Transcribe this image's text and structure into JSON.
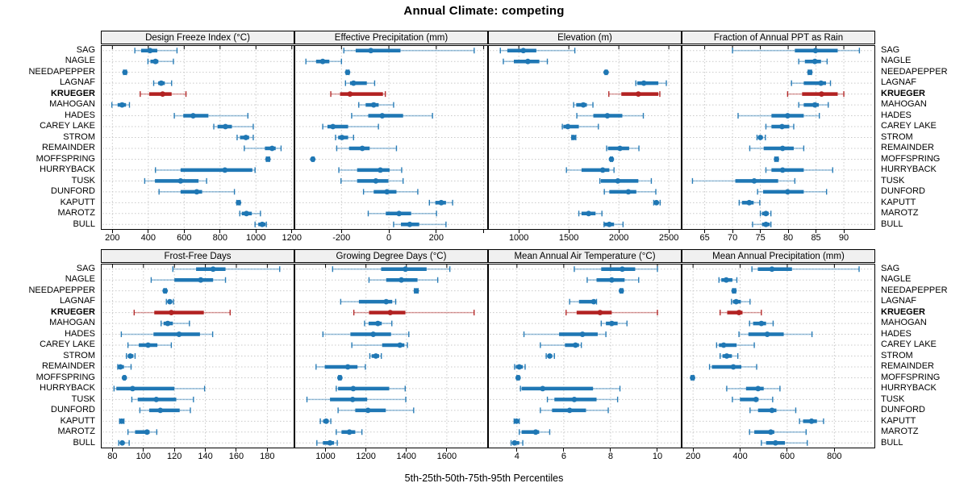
{
  "title": "Annual Climate: competing",
  "caption": "5th-25th-50th-75th-95th Percentiles",
  "highlight_site": "KRUEGER",
  "colors": {
    "series_blue": "#1F77B4",
    "highlight_red": "#B22222",
    "grid": "#C9C9C9",
    "header_bg": "#F0F0F0",
    "border": "#000000"
  },
  "chart_data": {
    "type": "dotplot-percentile-whiskers",
    "note": "each site row shows [5th, 25th, 50th, 75th, 95th] percentiles; thin line 5th-95th with end caps, thick bar 25th-75th, dot at median",
    "sites": [
      "SAG",
      "NAGLE",
      "NEEDAPEPPER",
      "LAGNAF",
      "KRUEGER",
      "MAHOGAN",
      "HADES",
      "CAREY LAKE",
      "STROM",
      "REMAINDER",
      "MOFFSPRING",
      "HURRYBACK",
      "TUSK",
      "DUNFORD",
      "KAPUTT",
      "MAROTZ",
      "BULL"
    ],
    "panels": [
      {
        "title": "Design Freeze Index (°C)",
        "xlim": [
          140,
          1210
        ],
        "ticks": [
          200,
          400,
          600,
          800,
          1000,
          1200
        ],
        "tick_labels": [
          "200",
          "400",
          "600",
          "800",
          "1000",
          "1200"
        ],
        "values": [
          [
            325,
            360,
            410,
            450,
            560
          ],
          [
            398,
            412,
            440,
            456,
            540
          ],
          [
            262,
            266,
            270,
            274,
            278
          ],
          [
            430,
            455,
            472,
            492,
            530
          ],
          [
            355,
            405,
            480,
            530,
            610
          ],
          [
            197,
            229,
            254,
            276,
            295
          ],
          [
            545,
            595,
            650,
            735,
            955
          ],
          [
            765,
            786,
            830,
            866,
            985
          ],
          [
            895,
            911,
            944,
            962,
            985
          ],
          [
            935,
            1050,
            1090,
            1110,
            1140
          ],
          [
            1058,
            1063,
            1067,
            1071,
            1076
          ],
          [
            440,
            580,
            827,
            980,
            995
          ],
          [
            380,
            437,
            580,
            680,
            725
          ],
          [
            460,
            580,
            670,
            700,
            880
          ],
          [
            893,
            899,
            903,
            907,
            912
          ],
          [
            910,
            921,
            947,
            977,
            1025
          ],
          [
            995,
            1013,
            1035,
            1053,
            1058
          ]
        ]
      },
      {
        "title": "Effective Precipitation (mm)",
        "xlim": [
          -395,
          415
        ],
        "ticks": [
          -200,
          0,
          200,
          400
        ],
        "tick_labels": [
          "-200",
          "0",
          "200",
          ""
        ],
        "values": [
          [
            -190,
            -140,
            -76,
            49,
            360
          ],
          [
            -350,
            -307,
            -279,
            -251,
            -200
          ],
          [
            -180,
            -177,
            -174,
            -171,
            -168
          ],
          [
            -183,
            -164,
            -149,
            -93,
            -60
          ],
          [
            -245,
            -206,
            -164,
            -25,
            -15
          ],
          [
            -127,
            -98,
            -64,
            -43,
            20
          ],
          [
            -157,
            -87,
            -28,
            60,
            184
          ],
          [
            -279,
            -259,
            -236,
            -172,
            -44
          ],
          [
            -225,
            -214,
            -198,
            -172,
            -149
          ],
          [
            -220,
            -168,
            -112,
            -81,
            32
          ],
          [
            -324,
            -322,
            -321,
            -319,
            -316
          ],
          [
            -211,
            -134,
            -36,
            3,
            54
          ],
          [
            -202,
            -134,
            -55,
            -2,
            60
          ],
          [
            -107,
            -64,
            -8,
            32,
            122
          ],
          [
            171,
            196,
            221,
            241,
            269
          ],
          [
            -87,
            -13,
            43,
            94,
            201
          ],
          [
            20,
            51,
            88,
            128,
            241
          ]
        ]
      },
      {
        "title": "Elevation (m)",
        "xlim": [
          700,
          2620
        ],
        "ticks": [
          1000,
          1500,
          2000,
          2500
        ],
        "tick_labels": [
          "1000",
          "1500",
          "2000",
          "2500"
        ],
        "values": [
          [
            815,
            885,
            1045,
            1175,
            1560
          ],
          [
            845,
            950,
            1090,
            1205,
            1285
          ],
          [
            1863,
            1868,
            1873,
            1878,
            1883
          ],
          [
            2170,
            2185,
            2250,
            2395,
            2475
          ],
          [
            1900,
            2025,
            2195,
            2395,
            2410
          ],
          [
            1548,
            1574,
            1645,
            1680,
            1741
          ],
          [
            1580,
            1745,
            1885,
            2035,
            2245
          ],
          [
            1435,
            1445,
            1490,
            1600,
            1795
          ],
          [
            1530,
            1541,
            1548,
            1556,
            1570
          ],
          [
            1878,
            1891,
            2011,
            2103,
            2201
          ],
          [
            1916,
            1921,
            1926,
            1931,
            1937
          ],
          [
            1476,
            1627,
            1839,
            1905,
            1952
          ],
          [
            1810,
            1820,
            1990,
            2195,
            2325
          ],
          [
            1855,
            1905,
            2095,
            2175,
            2370
          ],
          [
            2349,
            2363,
            2376,
            2390,
            2413
          ],
          [
            1600,
            1627,
            1698,
            1767,
            1831
          ],
          [
            1852,
            1857,
            1905,
            1952,
            2042
          ]
        ]
      },
      {
        "title": "Fraction of Annual PPT as Rain",
        "xlim": [
          61,
          95.5
        ],
        "ticks": [
          65,
          70,
          75,
          80,
          85,
          90
        ],
        "tick_labels": [
          "65",
          "70",
          "75",
          "80",
          "85",
          "90"
        ],
        "values": [
          [
            70,
            81.2,
            84.9,
            88.9,
            92.8
          ],
          [
            81.9,
            83.0,
            84.8,
            85.9,
            87.0
          ],
          [
            83.6,
            83.75,
            83.9,
            84.05,
            84.2
          ],
          [
            80.6,
            82.8,
            85.9,
            86.8,
            87.6
          ],
          [
            79.9,
            82.5,
            86.0,
            88.9,
            90.0
          ],
          [
            81.9,
            82.8,
            84.8,
            85.5,
            87.2
          ],
          [
            71.0,
            77.0,
            79.9,
            82.8,
            85.6
          ],
          [
            76.0,
            77.0,
            78.9,
            80.2,
            81.0
          ],
          [
            74.4,
            74.7,
            75.0,
            75.4,
            75.9
          ],
          [
            73.1,
            75.6,
            79.0,
            81.0,
            82.8
          ],
          [
            77.6,
            77.75,
            77.9,
            78.05,
            78.2
          ],
          [
            76.0,
            77.0,
            79.0,
            82.8,
            88.0
          ],
          [
            62.8,
            70.5,
            73.9,
            78.2,
            81.2
          ],
          [
            74.5,
            75.5,
            79.9,
            82.8,
            86.9
          ],
          [
            71.2,
            71.7,
            73.0,
            73.8,
            74.9
          ],
          [
            75.0,
            75.3,
            76.0,
            76.5,
            76.9
          ],
          [
            73.6,
            75.3,
            76.0,
            76.7,
            76.9
          ]
        ]
      },
      {
        "title": "Frost-Free Days",
        "xlim": [
          73,
          197
        ],
        "ticks": [
          80,
          100,
          120,
          140,
          160,
          180
        ],
        "tick_labels": [
          "80",
          "100",
          "120",
          "140",
          "160",
          "180"
        ],
        "values": [
          [
            119,
            134,
            145,
            153,
            188
          ],
          [
            105,
            120,
            137,
            145,
            153
          ],
          [
            113.2,
            113.6,
            114,
            114.4,
            114.8
          ],
          [
            114.8,
            115.8,
            117,
            118.2,
            119.4
          ],
          [
            94,
            107,
            118,
            139,
            156
          ],
          [
            111.4,
            113,
            115.7,
            119,
            129.7
          ],
          [
            85.7,
            106.5,
            123,
            136.5,
            144.7
          ],
          [
            90,
            97,
            103,
            109,
            118
          ],
          [
            89,
            90,
            91.5,
            93.5,
            94.6
          ],
          [
            83.4,
            84,
            85.1,
            87.4,
            92
          ],
          [
            87.2,
            87.45,
            87.7,
            87.95,
            88.2
          ],
          [
            81,
            82.5,
            93,
            120,
            139.5
          ],
          [
            92.5,
            96.3,
            108.3,
            121.2,
            132.3
          ],
          [
            97.7,
            103.7,
            110.9,
            123.4,
            130.3
          ],
          [
            84.6,
            85.3,
            86,
            86.7,
            87.4
          ],
          [
            90,
            94.6,
            102.3,
            104,
            108.6
          ],
          [
            84,
            85.1,
            86.3,
            87.7,
            90.8
          ]
        ]
      },
      {
        "title": "Growing Degree Days (°C)",
        "xlim": [
          850,
          1800
        ],
        "ticks": [
          1000,
          1200,
          1400,
          1600
        ],
        "tick_labels": [
          "1000",
          "1200",
          "1400",
          "1600"
        ],
        "values": [
          [
            1035,
            1275,
            1395,
            1500,
            1615
          ],
          [
            1215,
            1300,
            1375,
            1455,
            1555
          ],
          [
            1440,
            1444,
            1449,
            1454,
            1458
          ],
          [
            1075,
            1165,
            1300,
            1330,
            1347
          ],
          [
            1140,
            1215,
            1320,
            1395,
            1735
          ],
          [
            1193,
            1213,
            1259,
            1278,
            1328
          ],
          [
            987,
            1123,
            1236,
            1324,
            1412
          ],
          [
            1130,
            1280,
            1368,
            1390,
            1405
          ],
          [
            1219,
            1228,
            1249,
            1265,
            1276
          ],
          [
            953,
            996,
            1110,
            1158,
            1197
          ],
          [
            1065,
            1068,
            1071,
            1074,
            1077
          ],
          [
            1053,
            1062,
            1137,
            1315,
            1394
          ],
          [
            908,
            1022,
            1134,
            1206,
            1397
          ],
          [
            1062,
            1147,
            1210,
            1298,
            1436
          ],
          [
            974,
            988,
            1003,
            1015,
            1026
          ],
          [
            1053,
            1079,
            1118,
            1147,
            1180
          ],
          [
            957,
            987,
            1022,
            1042,
            1058
          ]
        ]
      },
      {
        "title": "Mean Annual Air Temperature (°C)",
        "xlim": [
          2.8,
          11
        ],
        "ticks": [
          4,
          6,
          8,
          10
        ],
        "tick_labels": [
          "4",
          "6",
          "8",
          "10"
        ],
        "values": [
          [
            6.45,
            7.6,
            8.5,
            9.05,
            10.0
          ],
          [
            7.0,
            7.4,
            8.05,
            8.6,
            9.2
          ],
          [
            8.41,
            8.44,
            8.46,
            8.49,
            8.52
          ],
          [
            6.25,
            6.65,
            7.28,
            7.36,
            7.4
          ],
          [
            6.1,
            6.55,
            7.55,
            8.05,
            10.0
          ],
          [
            7.6,
            7.8,
            8.05,
            8.3,
            8.7
          ],
          [
            4.3,
            5.8,
            6.8,
            7.45,
            7.8
          ],
          [
            5.0,
            6.05,
            6.5,
            6.65,
            6.75
          ],
          [
            5.25,
            5.32,
            5.4,
            5.5,
            5.6
          ],
          [
            3.9,
            3.95,
            4.1,
            4.25,
            4.35
          ],
          [
            4.0,
            4.03,
            4.05,
            4.08,
            4.1
          ],
          [
            4.15,
            4.2,
            5.1,
            7.25,
            8.4
          ],
          [
            5.3,
            5.6,
            6.45,
            7.4,
            8.3
          ],
          [
            5.0,
            5.5,
            6.25,
            6.95,
            7.9
          ],
          [
            3.88,
            3.93,
            3.98,
            4.04,
            4.1
          ],
          [
            4.1,
            4.2,
            4.8,
            4.95,
            5.4
          ],
          [
            3.75,
            3.8,
            3.9,
            4.1,
            4.25
          ]
        ]
      },
      {
        "title": "Mean Annual Precipitation (mm)",
        "xlim": [
          155,
          970
        ],
        "ticks": [
          200,
          400,
          600,
          800
        ],
        "tick_labels": [
          "200",
          "400",
          "600",
          "800"
        ],
        "values": [
          [
            450,
            475,
            535,
            620,
            905
          ],
          [
            310,
            320,
            341,
            367,
            386
          ],
          [
            368,
            371,
            374,
            377,
            381
          ],
          [
            363,
            369,
            383,
            403,
            442
          ],
          [
            315,
            345,
            395,
            410,
            490
          ],
          [
            440,
            455,
            490,
            510,
            540
          ],
          [
            395,
            435,
            515,
            585,
            705
          ],
          [
            300,
            310,
            330,
            385,
            460
          ],
          [
            315,
            325,
            343,
            365,
            390
          ],
          [
            270,
            280,
            371,
            405,
            470
          ],
          [
            192,
            196,
            198,
            201,
            204
          ],
          [
            343,
            425,
            476,
            500,
            569
          ],
          [
            367,
            399,
            467,
            478,
            538
          ],
          [
            442,
            476,
            535,
            554,
            636
          ],
          [
            652,
            667,
            703,
            726,
            754
          ],
          [
            440,
            460,
            530,
            545,
            680
          ],
          [
            490,
            510,
            550,
            590,
            685
          ]
        ]
      }
    ]
  }
}
